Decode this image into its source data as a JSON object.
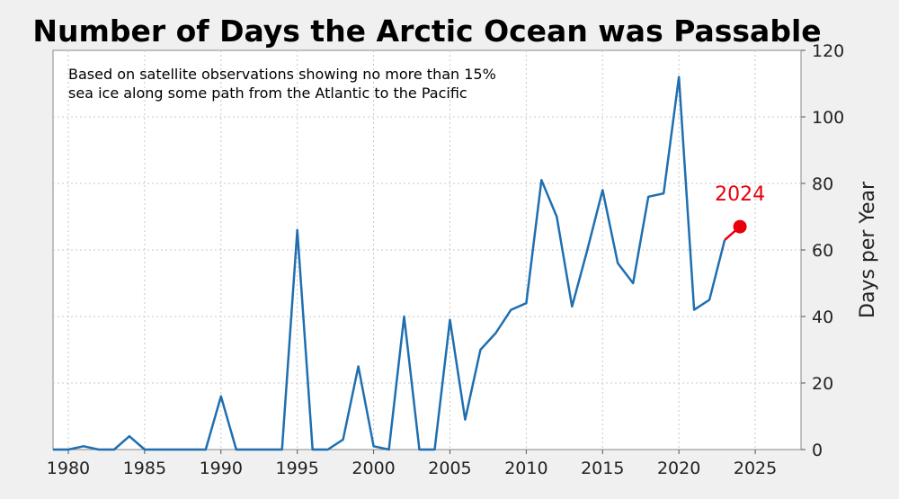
{
  "chart_data": {
    "type": "line",
    "title": "Number of Days the Arctic Ocean was Passable",
    "subtitle_lines": [
      "Based on satellite observations showing no more than 15%",
      "sea ice along some path from the Atlantic to the Pacific"
    ],
    "xlabel": "",
    "ylabel": "Days per Year",
    "xlim": [
      1979,
      2028
    ],
    "ylim": [
      0,
      120
    ],
    "x_ticks": [
      1980,
      1985,
      1990,
      1995,
      2000,
      2005,
      2010,
      2015,
      2020,
      2025
    ],
    "y_ticks": [
      0,
      20,
      40,
      60,
      80,
      100,
      120
    ],
    "grid": true,
    "y_axis_side": "right",
    "series": [
      {
        "color": "#1f6fb0",
        "x": [
          1979,
          1980,
          1981,
          1982,
          1983,
          1984,
          1985,
          1986,
          1987,
          1988,
          1989,
          1990,
          1991,
          1992,
          1993,
          1994,
          1995,
          1996,
          1997,
          1998,
          1999,
          2000,
          2001,
          2002,
          2003,
          2004,
          2005,
          2006,
          2007,
          2008,
          2009,
          2010,
          2011,
          2012,
          2013,
          2014,
          2015,
          2016,
          2017,
          2018,
          2019,
          2020,
          2021,
          2022,
          2023
        ],
        "y": [
          0,
          0,
          1,
          0,
          0,
          4,
          0,
          0,
          0,
          0,
          0,
          16,
          0,
          0,
          0,
          0,
          66,
          0,
          0,
          3,
          25,
          1,
          0,
          40,
          0,
          0,
          39,
          9,
          30,
          35,
          42,
          44,
          81,
          70,
          43,
          60,
          78,
          56,
          50,
          76,
          77,
          112,
          42,
          45,
          63
        ]
      }
    ],
    "highlight": {
      "x": [
        2023,
        2024
      ],
      "y": [
        63,
        67
      ],
      "label": "2024",
      "color": "#e8000b"
    }
  }
}
